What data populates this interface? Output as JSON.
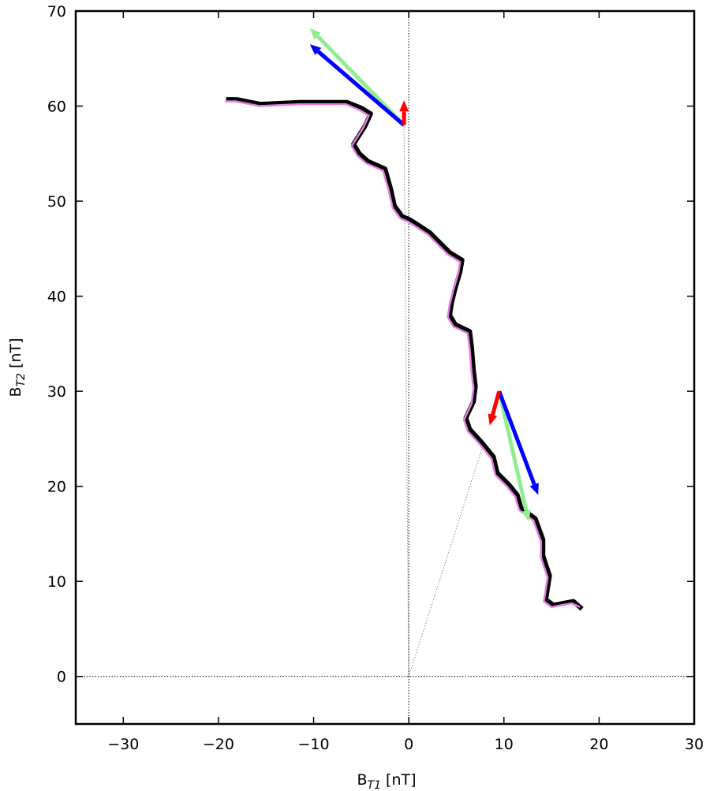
{
  "chart_data": {
    "type": "line",
    "xlabel": {
      "base": "B",
      "sub": "T1",
      "unit": " [nT]"
    },
    "ylabel": {
      "base": "B",
      "sub": "T2",
      "unit": " [nT]"
    },
    "xlim": [
      -35,
      30
    ],
    "ylim": [
      -5,
      70
    ],
    "xticks": [
      {
        "value": -30,
        "label": "−30"
      },
      {
        "value": -20,
        "label": "−20"
      },
      {
        "value": -10,
        "label": "−10"
      },
      0,
      10,
      20,
      30
    ],
    "yticks": [
      0,
      10,
      20,
      30,
      40,
      50,
      60,
      70
    ],
    "zero_lines": true,
    "series": [
      {
        "color": "#000000",
        "x": [
          -19.2,
          -18.1,
          -15.6,
          -11.4,
          -6.5,
          -5.0,
          -4.0,
          -4.6,
          -5.8,
          -5.2,
          -4.3,
          -2.5,
          -1.9,
          -1.5,
          -0.7,
          0.2,
          2.2,
          4.3,
          5.6,
          5.4,
          4.9,
          4.5,
          4.3,
          4.9,
          6.4,
          6.6,
          6.8,
          7.0,
          6.8,
          6.0,
          6.4,
          7.6,
          8.9,
          9.3,
          10.5,
          11.4,
          11.8,
          13.3,
          14.1,
          14.1,
          14.8,
          14.4,
          15.2,
          17.3,
          18.2
        ],
        "values": [
          60.7,
          60.7,
          60.2,
          60.4,
          60.4,
          59.8,
          59.2,
          57.9,
          56.0,
          55.0,
          54.2,
          53.4,
          51.3,
          49.5,
          48.4,
          48.0,
          46.7,
          44.6,
          43.8,
          42.6,
          40.9,
          39.3,
          38.0,
          37.0,
          36.3,
          34.7,
          32.2,
          30.5,
          28.9,
          27.2,
          26.0,
          24.7,
          23.1,
          21.4,
          20.2,
          19.1,
          17.7,
          16.6,
          14.4,
          12.7,
          10.6,
          8.1,
          7.5,
          7.9,
          7.1
        ]
      },
      {
        "color": "#e27ee0",
        "x": [
          -19.3,
          -18.2,
          -15.7,
          -11.5,
          -6.6,
          -5.2,
          -4.2,
          -4.8,
          -6.0,
          -5.4,
          -4.5,
          -2.7,
          -2.1,
          -1.7,
          -0.9,
          0.0,
          2.0,
          4.1,
          5.4,
          5.2,
          4.7,
          4.3,
          4.1,
          4.7,
          6.2,
          6.4,
          6.6,
          6.8,
          6.6,
          5.8,
          6.2,
          7.4,
          8.7,
          9.1,
          10.3,
          11.2,
          11.6,
          13.1,
          13.9,
          13.9,
          14.6,
          14.2,
          15.0,
          17.1,
          18.0
        ],
        "values": [
          60.5,
          60.5,
          60.0,
          60.2,
          60.2,
          59.6,
          59.0,
          57.7,
          55.8,
          54.8,
          54.0,
          53.2,
          51.1,
          49.3,
          48.2,
          47.8,
          46.5,
          44.4,
          43.6,
          42.4,
          40.7,
          39.1,
          37.8,
          36.8,
          36.1,
          34.5,
          32.0,
          30.3,
          28.7,
          27.0,
          25.8,
          24.5,
          22.9,
          21.2,
          20.0,
          18.9,
          17.5,
          16.4,
          14.2,
          12.5,
          10.4,
          7.9,
          7.3,
          7.7,
          7.3
        ]
      }
    ],
    "guides": [
      {
        "x": [
          0,
          -0.5
        ],
        "y": [
          0,
          58
        ]
      },
      {
        "x": [
          0,
          7.8
        ],
        "y": [
          0,
          24.3
        ]
      }
    ],
    "arrows": [
      {
        "x0": -0.5,
        "y0": 58,
        "x1": -10.4,
        "y1": 68.2,
        "color": "#90ee90"
      },
      {
        "x0": -0.5,
        "y0": 58,
        "x1": -10.4,
        "y1": 66.5,
        "color": "#0000ff"
      },
      {
        "x0": -0.5,
        "y0": 58,
        "x1": -0.5,
        "y1": 60.6,
        "color": "#ff0000"
      },
      {
        "x0": 9.5,
        "y0": 30,
        "x1": 12.6,
        "y1": 16.3,
        "color": "#90ee90"
      },
      {
        "x0": 9.5,
        "y0": 30,
        "x1": 13.6,
        "y1": 19.1,
        "color": "#0000ff"
      },
      {
        "x0": 9.5,
        "y0": 30,
        "x1": 8.5,
        "y1": 26.4,
        "color": "#ff0000"
      }
    ]
  }
}
